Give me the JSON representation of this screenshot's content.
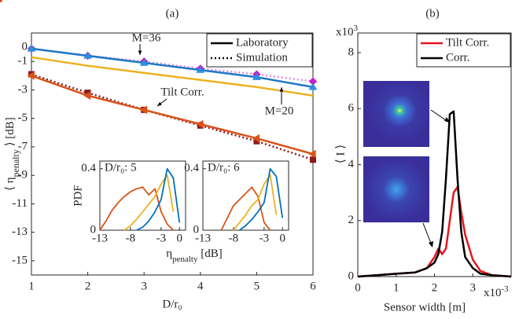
{
  "chart_data": [
    {
      "type": "line",
      "title": "(a)",
      "xlabel": "D/r₀",
      "ylabel": [
        "⟨ η",
        "penalty",
        " ⟩ [dB]"
      ],
      "x": [
        1,
        2,
        3,
        4,
        5,
        6
      ],
      "xlim": [
        1,
        6
      ],
      "xticks": [
        1,
        2,
        3,
        4,
        5,
        6
      ],
      "ylim": [
        -16,
        1
      ],
      "yticks": [
        0,
        -1,
        -3,
        -5,
        -7,
        -9,
        -11,
        -13,
        -15
      ],
      "grid": false,
      "series": [
        {
          "color": "#d98fe0",
          "dash": "dotted",
          "marker": "diamond",
          "markercolor": "#c81ec8",
          "values": [
            -0.1,
            -0.6,
            -1.0,
            -1.5,
            -1.9,
            -2.4
          ]
        },
        {
          "color": "#1f77c4",
          "dash": "solid",
          "marker": "triangle",
          "markercolor": "#2a8fe0",
          "values": [
            -0.1,
            -0.6,
            -1.1,
            -1.6,
            -2.1,
            -2.8
          ]
        },
        {
          "color": "#edb120",
          "dash": "solid",
          "marker": "dot",
          "markercolor": "#d95319",
          "values": [
            -0.7,
            -1.3,
            -1.8,
            -2.3,
            -2.8,
            -3.4
          ]
        },
        {
          "color": "#8b1a1a",
          "dash": "dotted",
          "marker": "square",
          "markercolor": "#8b1a1a",
          "values": [
            -1.9,
            -3.2,
            -4.4,
            -5.5,
            -6.6,
            -7.9
          ]
        },
        {
          "color": "#d95319",
          "dash": "solid",
          "marker": "left-triangle",
          "markercolor": "#d95319",
          "values": [
            -2.0,
            -3.4,
            -4.4,
            -5.4,
            -6.4,
            -7.5
          ]
        }
      ],
      "legend": [
        {
          "label": "Laboratory",
          "dash": "solid"
        },
        {
          "label": "Simulation",
          "dash": "dotted"
        }
      ],
      "annotations": [
        "M=36",
        "M=20",
        "Tilt Corr."
      ]
    },
    {
      "type": "line",
      "title": "D/r₀: 5",
      "ylabel": "PDF",
      "xlabel": [
        "η",
        "penalty",
        " [dB]"
      ],
      "x": [
        -13,
        -12,
        -11,
        -10,
        -9,
        -8,
        -7,
        -6,
        -5,
        -4,
        -3,
        -2,
        -1,
        0
      ],
      "xlim": [
        -13,
        1
      ],
      "xticks": [
        -13,
        -8,
        -3,
        0
      ],
      "ylim": [
        0,
        0.45
      ],
      "yticks": [
        0,
        0.4
      ],
      "series": [
        {
          "color": "#d95319",
          "values": [
            0,
            0.06,
            0.13,
            0.18,
            0.22,
            0.25,
            0.27,
            0.28,
            0.23,
            0.27,
            0.12,
            0.04,
            0,
            null
          ]
        },
        {
          "color": "#edb120",
          "values": [
            null,
            null,
            null,
            null,
            0,
            0.03,
            0.07,
            0.12,
            0.17,
            0.22,
            0.3,
            0.36,
            0.12,
            null
          ]
        },
        {
          "color": "#0072bd",
          "values": [
            null,
            null,
            null,
            null,
            null,
            null,
            0,
            0.02,
            0.06,
            0.12,
            0.2,
            0.4,
            0.34,
            0.05
          ]
        }
      ]
    },
    {
      "type": "line",
      "title": "D/r₀: 6",
      "x": [
        -13,
        -12,
        -11,
        -10,
        -9,
        -8,
        -7,
        -6,
        -5,
        -4,
        -3,
        -2,
        -1,
        0
      ],
      "xlim": [
        -13,
        1
      ],
      "xticks": [
        -13,
        -8,
        -3,
        0
      ],
      "ylim": [
        0,
        0.45
      ],
      "yticks": [
        0,
        0.4
      ],
      "series": [
        {
          "color": "#d95319",
          "values": [
            null,
            null,
            null,
            0,
            0.08,
            0.16,
            0.2,
            0.24,
            0.28,
            0.22,
            0.05,
            0,
            null,
            null
          ]
        },
        {
          "color": "#edb120",
          "values": [
            null,
            null,
            null,
            null,
            null,
            0,
            0.05,
            0.1,
            0.16,
            0.2,
            0.3,
            0.36,
            0.1,
            null
          ]
        },
        {
          "color": "#0072bd",
          "values": [
            null,
            null,
            null,
            null,
            null,
            null,
            0,
            0.03,
            0.07,
            0.12,
            0.18,
            0.4,
            0.35,
            0.08
          ]
        }
      ]
    },
    {
      "type": "line",
      "title": "(b)",
      "xlabel": "Sensor width [m]",
      "ylabel": "⟨ I ⟩",
      "ymultiplier": [
        "x10",
        "3"
      ],
      "xmultiplier": [
        "x10",
        "-3"
      ],
      "x": [
        0,
        0.5,
        1,
        1.5,
        1.8,
        2,
        2.1,
        2.2,
        2.3,
        2.4,
        2.5,
        2.6,
        2.7,
        2.8,
        3,
        3.2,
        3.5,
        4
      ],
      "xlim": [
        0,
        4
      ],
      "xticks": [
        0,
        1,
        2,
        3
      ],
      "ylim": [
        0,
        8.7
      ],
      "yticks": [
        0,
        2,
        4,
        6,
        8
      ],
      "series": [
        {
          "name": "Tilt Corr.",
          "color": "#e8141e",
          "values": [
            0,
            0.05,
            0.1,
            0.15,
            0.3,
            0.7,
            1.0,
            0.8,
            1.0,
            2.0,
            3.0,
            3.2,
            2.3,
            1.5,
            0.6,
            0.2,
            0.05,
            0
          ]
        },
        {
          "name": "Corr.",
          "color": "#000000",
          "values": [
            0,
            0.05,
            0.1,
            0.15,
            0.3,
            0.5,
            0.8,
            1.6,
            3.5,
            5.8,
            5.9,
            3.5,
            1.6,
            0.7,
            0.3,
            0.1,
            0.05,
            0
          ]
        }
      ]
    }
  ]
}
